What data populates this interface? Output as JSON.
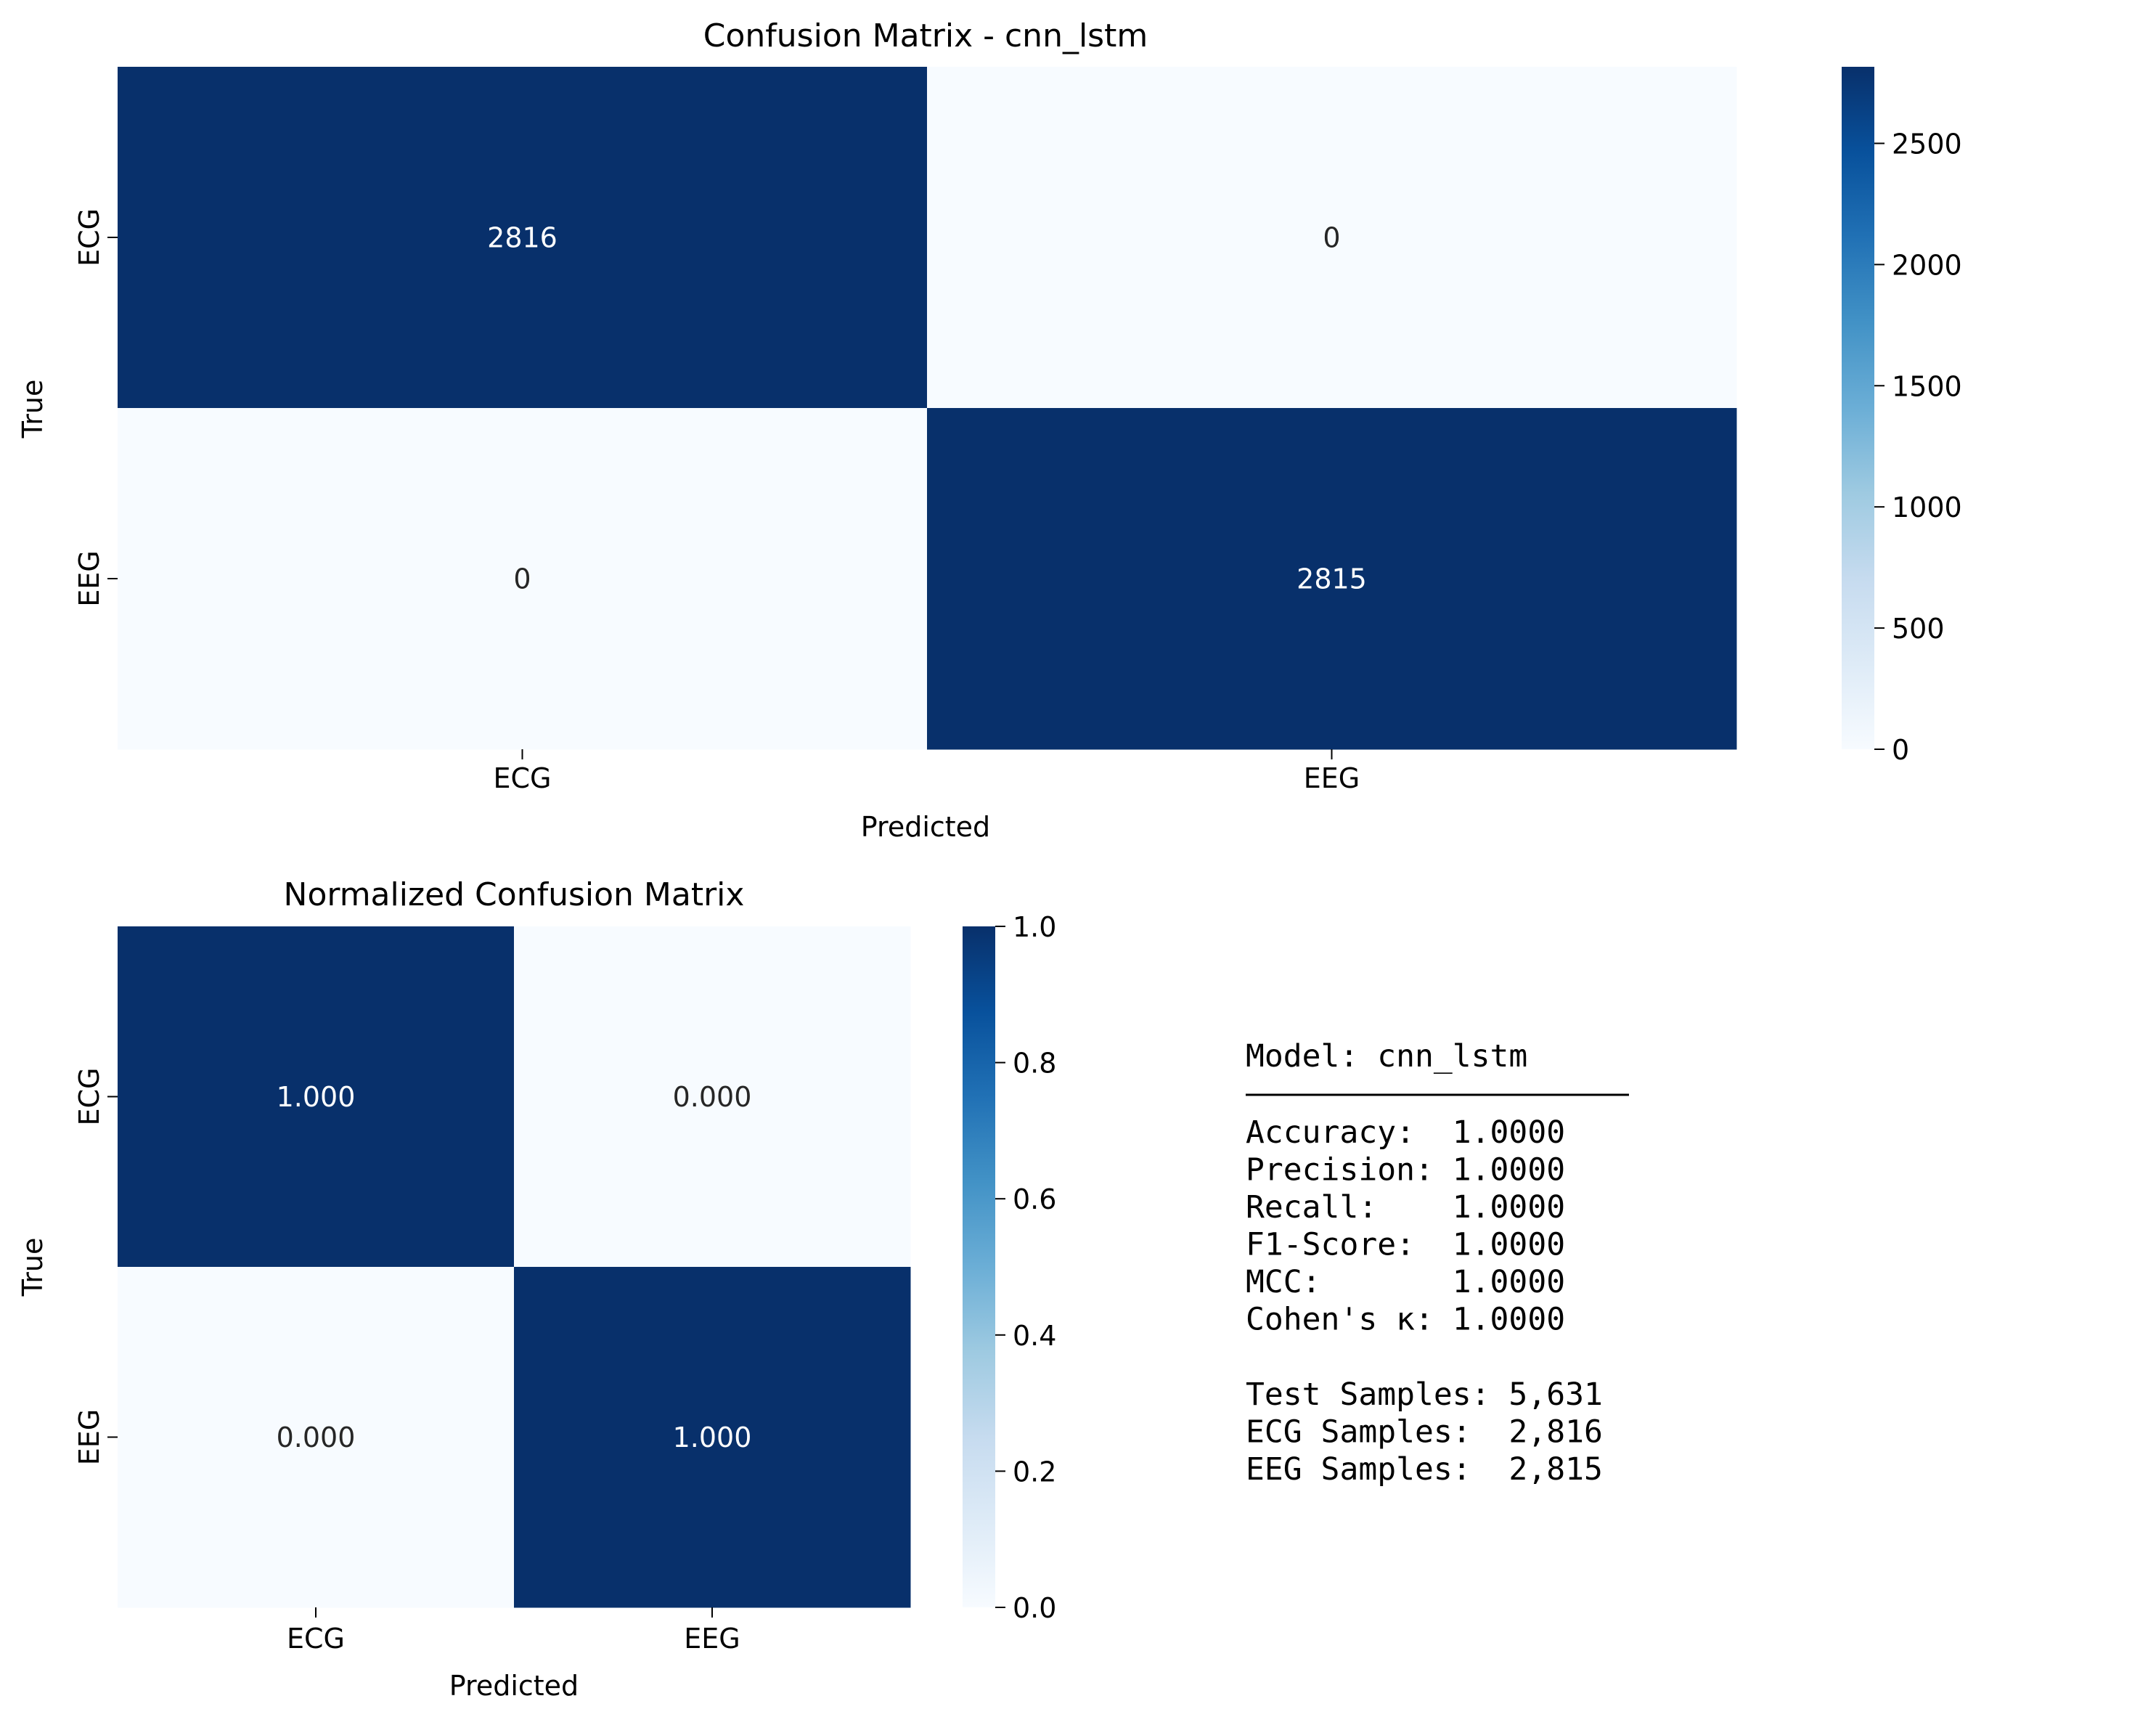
{
  "colormap": {
    "name": "Blues",
    "stops": [
      "#f7fbff",
      "#deebf7",
      "#c6dbef",
      "#9ecae1",
      "#6baed6",
      "#4292c6",
      "#2171b5",
      "#08519c",
      "#08306b"
    ],
    "text_on_dark": "#ffffff",
    "text_on_light": "#262626"
  },
  "chart_data": [
    {
      "type": "heatmap",
      "title": "Confusion Matrix - cnn_lstm",
      "xlabel": "Predicted",
      "ylabel": "True",
      "x_categories": [
        "ECG",
        "EEG"
      ],
      "y_categories": [
        "ECG",
        "EEG"
      ],
      "values": [
        [
          2816,
          0
        ],
        [
          0,
          2815
        ]
      ],
      "cell_labels": [
        [
          "2816",
          "0"
        ],
        [
          "0",
          "2815"
        ]
      ],
      "vmin": 0,
      "vmax": 2816,
      "colorbar_ticks": [
        0,
        500,
        1000,
        1500,
        2000,
        2500
      ],
      "colorbar_tick_labels": [
        "0",
        "500",
        "1000",
        "1500",
        "2000",
        "2500"
      ]
    },
    {
      "type": "heatmap",
      "title": "Normalized Confusion Matrix",
      "xlabel": "Predicted",
      "ylabel": "True",
      "x_categories": [
        "ECG",
        "EEG"
      ],
      "y_categories": [
        "ECG",
        "EEG"
      ],
      "values": [
        [
          1.0,
          0.0
        ],
        [
          0.0,
          1.0
        ]
      ],
      "cell_labels": [
        [
          "1.000",
          "0.000"
        ],
        [
          "0.000",
          "1.000"
        ]
      ],
      "vmin": 0,
      "vmax": 1,
      "colorbar_ticks": [
        0,
        0.2,
        0.4,
        0.6,
        0.8,
        1.0
      ],
      "colorbar_tick_labels": [
        "0.0",
        "0.2",
        "0.4",
        "0.6",
        "0.8",
        "1.0"
      ]
    }
  ],
  "summary": {
    "header": "Model: cnn_lstm",
    "metrics": [
      "Accuracy:  1.0000",
      "Precision: 1.0000",
      "Recall:    1.0000",
      "F1-Score:  1.0000",
      "MCC:       1.0000",
      "Cohen's κ: 1.0000"
    ],
    "samples": [
      "Test Samples: 5,631",
      "ECG Samples:  2,816",
      "EEG Samples:  2,815"
    ]
  }
}
